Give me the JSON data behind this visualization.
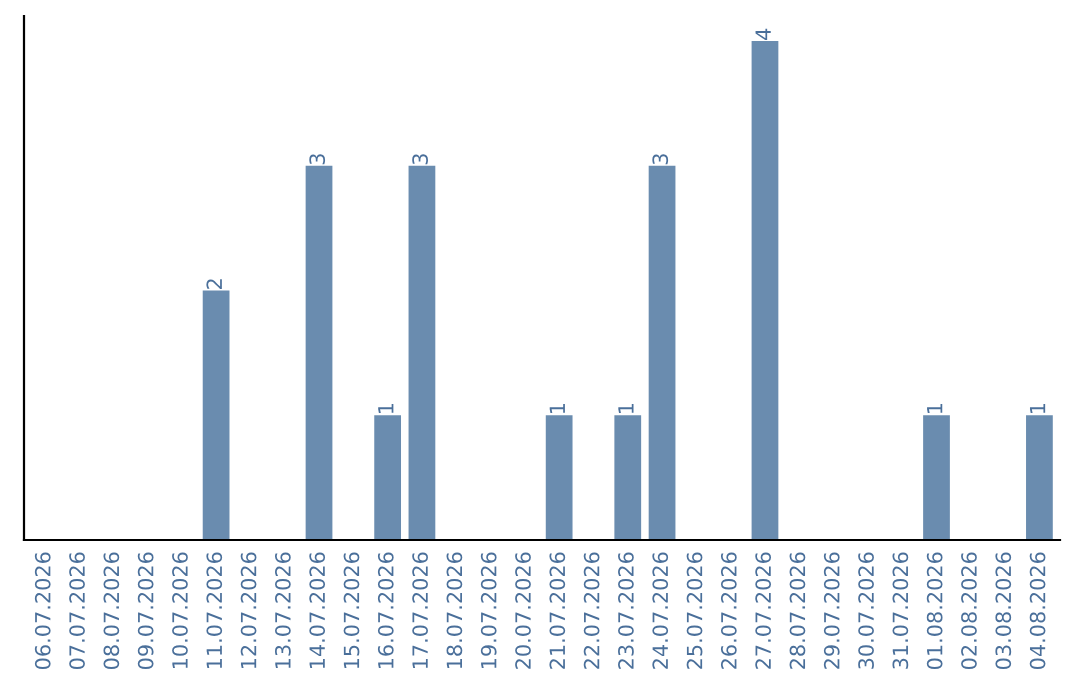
{
  "chart_data": {
    "type": "bar",
    "categories": [
      "06.07.2026",
      "07.07.2026",
      "08.07.2026",
      "09.07.2026",
      "10.07.2026",
      "11.07.2026",
      "12.07.2026",
      "13.07.2026",
      "14.07.2026",
      "15.07.2026",
      "16.07.2026",
      "17.07.2026",
      "18.07.2026",
      "19.07.2026",
      "20.07.2026",
      "21.07.2026",
      "22.07.2026",
      "23.07.2026",
      "24.07.2026",
      "25.07.2026",
      "26.07.2026",
      "27.07.2026",
      "28.07.2026",
      "29.07.2026",
      "30.07.2026",
      "31.07.2026",
      "01.08.2026",
      "02.08.2026",
      "03.08.2026",
      "04.08.2026"
    ],
    "values": [
      0,
      0,
      0,
      0,
      0,
      2,
      0,
      0,
      3,
      0,
      1,
      3,
      0,
      0,
      0,
      1,
      0,
      1,
      3,
      0,
      0,
      4,
      0,
      0,
      0,
      0,
      1,
      0,
      0,
      1
    ],
    "value_labels": [
      null,
      null,
      null,
      null,
      null,
      "2",
      null,
      null,
      "3",
      null,
      "1",
      "3",
      null,
      null,
      null,
      "1",
      null,
      "1",
      "3",
      null,
      null,
      "4",
      null,
      null,
      null,
      null,
      "1",
      null,
      null,
      "1"
    ],
    "color": "#6a8caf",
    "grid": false,
    "legend": false
  }
}
